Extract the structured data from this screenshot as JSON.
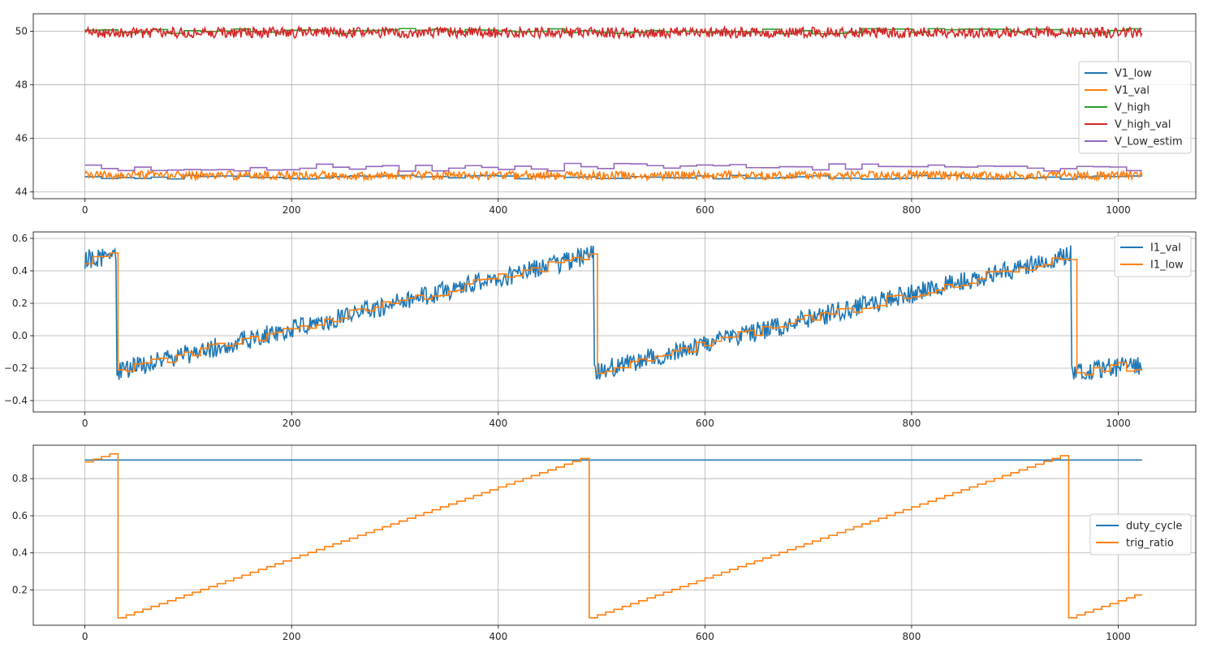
{
  "chart_data": [
    {
      "type": "line",
      "title": "",
      "xlabel": "",
      "ylabel": "",
      "xlim": [
        -50,
        1075
      ],
      "ylim": [
        43.75,
        50.65
      ],
      "xticks": [
        0,
        200,
        400,
        600,
        800,
        1000
      ],
      "yticks": [
        44,
        46,
        48,
        50
      ],
      "grid": true,
      "legend": "center-right",
      "series": [
        {
          "name": "V1_low",
          "color": "#1f77b4",
          "style": "step",
          "base": 44.55,
          "amplitude": 0.07,
          "step_len": 16,
          "n": 1024
        },
        {
          "name": "V1_val",
          "color": "#ff7f0e",
          "style": "noise",
          "base": 44.62,
          "amplitude": 0.16,
          "n": 1024
        },
        {
          "name": "V_high",
          "color": "#2ca02c",
          "style": "step",
          "base": 50.0,
          "amplitude": 0.1,
          "step_len": 16,
          "n": 1024
        },
        {
          "name": "V_high_val",
          "color": "#d62728",
          "style": "noise",
          "base": 49.95,
          "amplitude": 0.2,
          "n": 1024
        },
        {
          "name": "V_Low_estim",
          "color": "#9467bd",
          "style": "step",
          "base": 44.92,
          "amplitude": 0.15,
          "step_len": 16,
          "n": 1024
        }
      ]
    },
    {
      "type": "line",
      "title": "",
      "xlabel": "",
      "ylabel": "",
      "xlim": [
        -50,
        1075
      ],
      "ylim": [
        -0.47,
        0.64
      ],
      "xticks": [
        0,
        200,
        400,
        600,
        800,
        1000
      ],
      "yticks": [
        -0.4,
        -0.2,
        0.0,
        0.2,
        0.4,
        0.6
      ],
      "ytick_labels": [
        "−0.4",
        "−0.2",
        "0.0",
        "0.2",
        "0.4",
        "0.6"
      ],
      "grid": true,
      "legend": "top-right",
      "series": [
        {
          "name": "I1_val",
          "color": "#1f77b4",
          "style": "ramp-noise",
          "noise": 0.06,
          "n": 1024,
          "segments": [
            {
              "x0": 0,
              "x1": 31,
              "y0": 0.47,
              "y1": 0.5
            },
            {
              "x0": 31,
              "x1": 493,
              "y0": -0.22,
              "y1": 0.5
            },
            {
              "x0": 493,
              "x1": 955,
              "y0": -0.22,
              "y1": 0.5
            },
            {
              "x0": 955,
              "x1": 1023,
              "y0": -0.22,
              "y1": -0.18
            }
          ]
        },
        {
          "name": "I1_low",
          "color": "#ff7f0e",
          "style": "ramp-step",
          "noise": 0.03,
          "step_len": 8,
          "n": 1024,
          "segments": [
            {
              "x0": 0,
              "x1": 31,
              "y0": 0.47,
              "y1": 0.5
            },
            {
              "x0": 31,
              "x1": 493,
              "y0": -0.22,
              "y1": 0.5
            },
            {
              "x0": 493,
              "x1": 955,
              "y0": -0.22,
              "y1": 0.5
            },
            {
              "x0": 955,
              "x1": 1023,
              "y0": -0.22,
              "y1": -0.18
            }
          ]
        }
      ]
    },
    {
      "type": "line",
      "title": "",
      "xlabel": "",
      "ylabel": "",
      "xlim": [
        -50,
        1075
      ],
      "ylim": [
        0.01,
        0.98
      ],
      "xticks": [
        0,
        200,
        400,
        600,
        800,
        1000
      ],
      "yticks": [
        0.2,
        0.4,
        0.6,
        0.8
      ],
      "grid": true,
      "legend": "center-right",
      "series": [
        {
          "name": "duty_cycle",
          "color": "#1f77b4",
          "style": "line",
          "x": [
            0,
            1023
          ],
          "y": [
            0.9,
            0.9
          ]
        },
        {
          "name": "trig_ratio",
          "color": "#ff7f0e",
          "style": "sawtooth-step",
          "step_len": 8,
          "n": 1024,
          "period_start": 25,
          "period": 462,
          "low": 0.05,
          "high": 0.935,
          "start_value": 0.89
        }
      ]
    }
  ]
}
